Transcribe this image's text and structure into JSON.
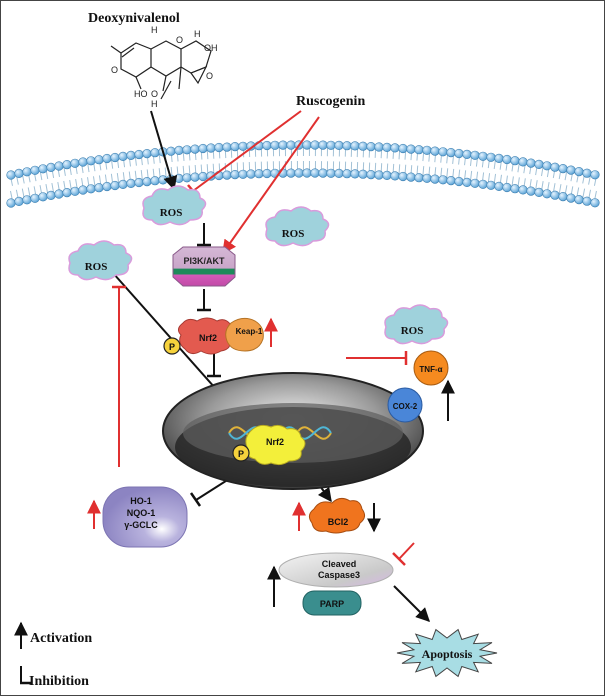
{
  "compounds": {
    "deoxynivalenol": "Deoxynivalenol",
    "ruscogenin": "Ruscogenin"
  },
  "structure": {
    "atoms": [
      "H",
      "O",
      "OH",
      "O",
      "H",
      "O",
      "HO",
      "O",
      "H"
    ]
  },
  "nodes": {
    "ros_membrane": "ROS",
    "ros_right": "ROS",
    "ros_left": "ROS",
    "ros_inflam": "ROS",
    "pi3k": "PI3K/AKT",
    "nrf2_cyto": "Nrf2",
    "keap1": "Keap-1",
    "p_cyto": "P",
    "tnf": "TNF-α",
    "cox2": "COX-2",
    "nrf2_nuc": "Nrf2",
    "p_nuc": "P",
    "enzymes": [
      "HO-1",
      "NQO-1",
      "γ-GCLC"
    ],
    "bcl2": "BCl2",
    "caspase": [
      "Cleaved",
      "Caspase3"
    ],
    "parp": "PARP",
    "apoptosis": "Apoptosis"
  },
  "legend": {
    "activation": "Activation",
    "inhibition": "Inhibition"
  },
  "colors": {
    "red": "#e03030",
    "black": "#111111",
    "membrane": "#8ec3e8",
    "ros": "#9fd2dc",
    "enzyme": "#9e96cc"
  }
}
